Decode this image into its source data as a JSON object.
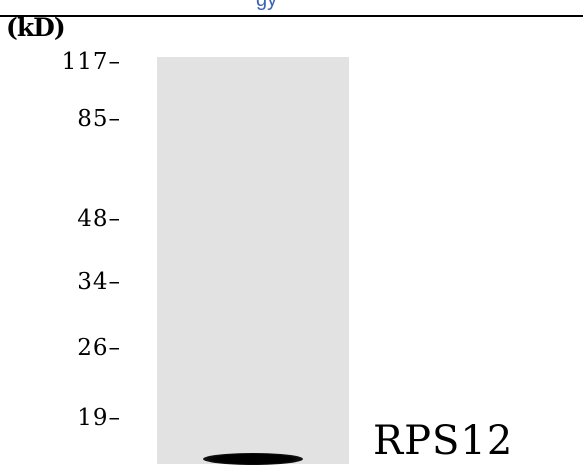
{
  "header": {
    "fragment_text": "gy",
    "rule_color": "#000000",
    "fragment_color": "#3a62b6"
  },
  "axis": {
    "unit_label": "(kD)",
    "markers": [
      {
        "label": "117–",
        "kd": 117
      },
      {
        "label": "85–",
        "kd": 85
      },
      {
        "label": "48–",
        "kd": 48
      },
      {
        "label": "34–",
        "kd": 34
      },
      {
        "label": "26–",
        "kd": 26
      },
      {
        "label": "19–",
        "kd": 19
      }
    ]
  },
  "blot": {
    "lane_color": "#e2e2e2",
    "band_color": "#000000"
  },
  "protein": {
    "label": "RPS12"
  }
}
